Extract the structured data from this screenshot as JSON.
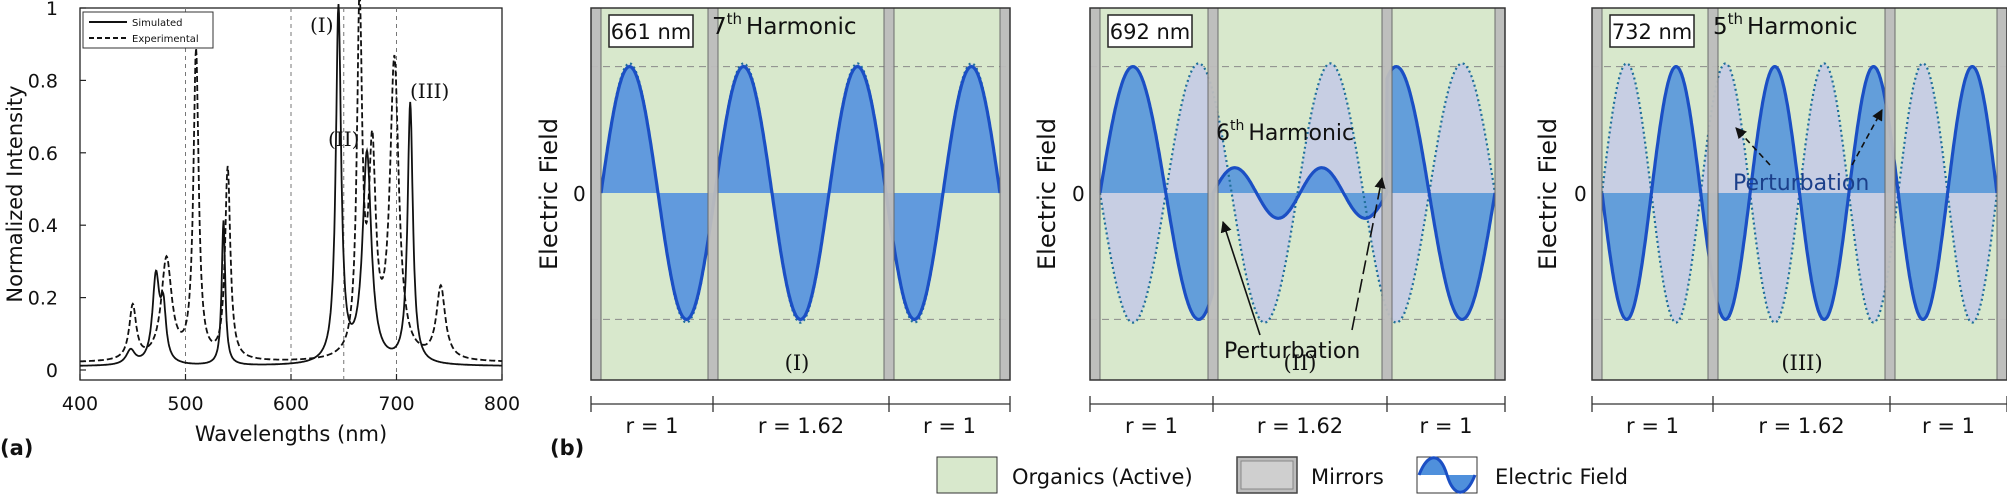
{
  "panel_labels": {
    "a": "(a)",
    "b": "(b)"
  },
  "legend_bottom": {
    "organics": "Organics (Active)",
    "mirrors": "Mirrors",
    "efield": "Electric Field"
  },
  "colors": {
    "organics": "#d8e8cc",
    "mirror": "#b9b9b9",
    "field_line": "#1b4fc4",
    "fill_dark": "#4f90dc",
    "fill_light": "#c6cce4",
    "dotted": "#1f6f9a"
  },
  "spectrum": {
    "ylabel": "Normalized Intensity",
    "xlabel": "Wavelengths (nm)",
    "legend": {
      "simulated": "Simulated",
      "experimental": "Experimental"
    },
    "peak_labels": {
      "I": "(I)",
      "II": "(II)",
      "III": "(III)"
    },
    "xticks": [
      "400",
      "500",
      "600",
      "700",
      "800"
    ],
    "yticks": [
      "0",
      "0.2",
      "0.4",
      "0.6",
      "0.8",
      "1"
    ]
  },
  "field_panels": [
    {
      "wavelength": "661 nm",
      "harmonic_num": "7",
      "harmonic_sup": "th",
      "harmonic_word": "Harmonic",
      "roman": "(I)",
      "ylabel": "Electric Field",
      "zero": "0",
      "region_labels": [
        "r = 1",
        "r = 1.62",
        "r = 1"
      ]
    },
    {
      "wavelength": "692 nm",
      "harmonic_num": "6",
      "harmonic_sup": "th",
      "harmonic_word": "Harmonic",
      "roman": "(II)",
      "annotation": "Perturbation",
      "ylabel": "Electric Field",
      "zero": "0",
      "region_labels": [
        "r = 1",
        "r = 1.62",
        "r = 1"
      ]
    },
    {
      "wavelength": "732 nm",
      "harmonic_num": "5",
      "harmonic_sup": "th",
      "harmonic_word": "Harmonic",
      "roman": "(III)",
      "annotation": "Perturbation",
      "ylabel": "Electric Field",
      "zero": "0",
      "region_labels": [
        "r = 1",
        "r = 1.62",
        "r = 1"
      ]
    }
  ],
  "chart_data": [
    {
      "type": "line",
      "xlabel": "Wavelengths (nm)",
      "ylabel": "Normalized Intensity",
      "xlim": [
        400,
        800
      ],
      "ylim": [
        0,
        1
      ],
      "grid": false,
      "legend_position": "top-left",
      "vlines": [
        500,
        600,
        650,
        700
      ],
      "series": [
        {
          "name": "Simulated",
          "style": "solid",
          "peaks": [
            [
              448,
              0.04,
              5
            ],
            [
              472,
              0.24,
              4
            ],
            [
              479,
              0.14,
              3
            ],
            [
              536,
              0.4,
              2
            ],
            [
              645,
              0.98,
              3
            ],
            [
              672,
              0.58,
              5
            ],
            [
              713,
              0.72,
              3
            ]
          ],
          "baseline": 0.01
        },
        {
          "name": "Experimental",
          "style": "dashed",
          "peaks": [
            [
              450,
              0.15,
              4
            ],
            [
              482,
              0.28,
              6
            ],
            [
              510,
              0.85,
              3
            ],
            [
              540,
              0.53,
              3
            ],
            [
              665,
              0.96,
              3
            ],
            [
              677,
              0.54,
              4
            ],
            [
              698,
              0.82,
              5
            ],
            [
              742,
              0.2,
              5
            ]
          ],
          "baseline": 0.02
        }
      ]
    },
    {
      "type": "line",
      "title": "661 nm",
      "ylabel": "Electric Field",
      "harmonic": 7,
      "regions": [
        "r = 1",
        "r = 1.62",
        "r = 1"
      ]
    },
    {
      "type": "line",
      "title": "692 nm",
      "ylabel": "Electric Field",
      "harmonic": 6,
      "regions": [
        "r = 1",
        "r = 1.62",
        "r = 1"
      ]
    },
    {
      "type": "line",
      "title": "732 nm",
      "ylabel": "Electric Field",
      "harmonic": 5,
      "regions": [
        "r = 1",
        "r = 1.62",
        "r = 1"
      ]
    }
  ]
}
